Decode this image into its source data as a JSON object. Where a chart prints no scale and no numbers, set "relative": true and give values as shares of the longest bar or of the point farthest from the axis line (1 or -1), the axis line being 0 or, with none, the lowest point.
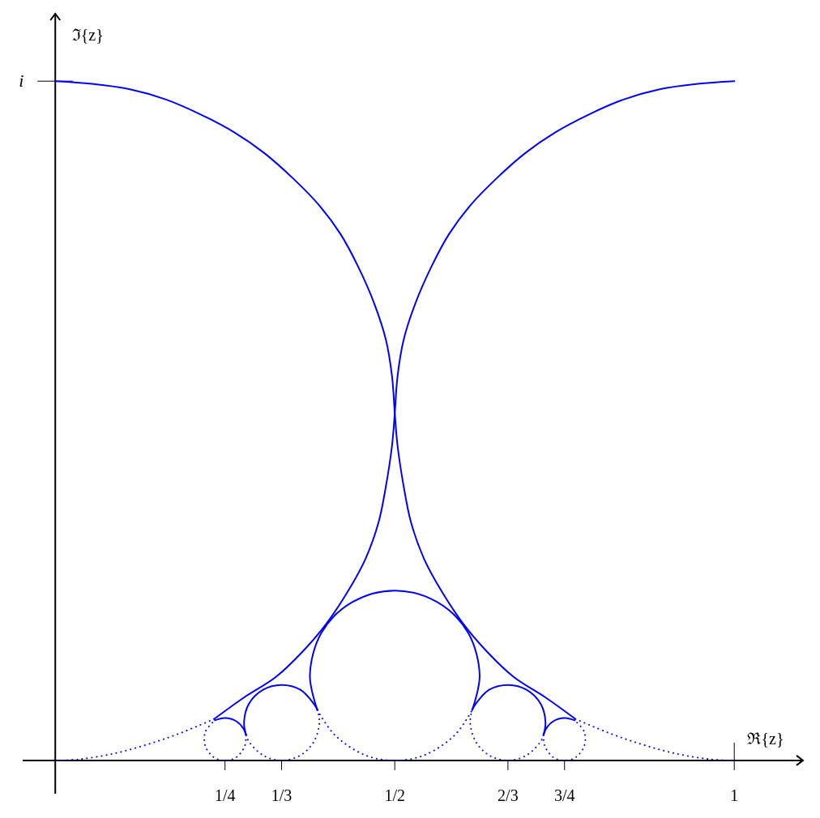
{
  "chart_data": {
    "type": "line",
    "xlabel": "ℜ{z}",
    "ylabel": "ℑ{z}",
    "xlim": [
      -0.048,
      1.1
    ],
    "relative": true,
    "xticks": [
      {
        "value": 0.25,
        "label": "1/4"
      },
      {
        "value": 0.3333,
        "label": "1/3"
      },
      {
        "value": 0.5,
        "label": "1/2"
      },
      {
        "value": 0.6667,
        "label": "2/3"
      },
      {
        "value": 0.75,
        "label": "3/4"
      },
      1
    ],
    "annotations": [
      {
        "text": "i",
        "x": 0,
        "y": 1
      }
    ],
    "grid": false,
    "marker": "none",
    "series": [
      {
        "color": "#0000ff",
        "line_style": "solid",
        "x": [
          0,
          0.054,
          0.11,
          0.163,
          0.214,
          0.263,
          0.308,
          0.35,
          0.388,
          0.42,
          0.446,
          0.47,
          0.487,
          0.496,
          0.5,
          0.504,
          0.513,
          0.524,
          0.543,
          0.569,
          0.601,
          0.636,
          0.675,
          0.723,
          0.766
        ],
        "values": [
          1,
          0.996,
          0.988,
          0.973,
          0.951,
          0.925,
          0.894,
          0.857,
          0.818,
          0.775,
          0.727,
          0.672,
          0.619,
          0.565,
          0.511,
          0.464,
          0.404,
          0.35,
          0.297,
          0.249,
          0.201,
          0.16,
          0.123,
          0.092,
          0.061
        ]
      },
      {
        "color": "#0000ff",
        "line_style": "solid",
        "x": [
          1,
          0.946,
          0.89,
          0.837,
          0.786,
          0.737,
          0.692,
          0.65,
          0.612,
          0.58,
          0.554,
          0.53,
          0.513,
          0.504,
          0.5,
          0.496,
          0.487,
          0.476,
          0.457,
          0.431,
          0.399,
          0.364,
          0.325,
          0.277,
          0.234
        ],
        "values": [
          1,
          0.996,
          0.988,
          0.973,
          0.951,
          0.925,
          0.894,
          0.857,
          0.818,
          0.775,
          0.727,
          0.672,
          0.619,
          0.565,
          0.511,
          0.464,
          0.404,
          0.35,
          0.297,
          0.249,
          0.201,
          0.16,
          0.123,
          0.092,
          0.061
        ]
      },
      {
        "color": "#0000ff",
        "line_style": "dotted",
        "x": [
          0.234,
          0.181,
          0.134,
          0.086,
          0.038,
          0
        ],
        "values": [
          0.061,
          0.039,
          0.023,
          0.01,
          0.002,
          0
        ]
      },
      {
        "color": "#0000ff",
        "line_style": "dotted",
        "x": [
          0.766,
          0.819,
          0.866,
          0.914,
          0.962,
          1
        ],
        "values": [
          0.061,
          0.039,
          0.023,
          0.01,
          0.002,
          0
        ]
      },
      {
        "color": "#0000ff",
        "line_style": "solid",
        "x": [
          0.386,
          0.375,
          0.392,
          0.4375,
          0.5,
          0.5625,
          0.608,
          0.625,
          0.614
        ],
        "values": [
          0.074,
          0.125,
          0.188,
          0.233,
          0.25,
          0.233,
          0.188,
          0.125,
          0.074
        ]
      },
      {
        "color": "#0000ff",
        "line_style": "dotted",
        "x": [
          0.386,
          0.412,
          0.457,
          0.5,
          0.543,
          0.588,
          0.614
        ],
        "values": [
          0.074,
          0.037,
          0.0075,
          0,
          0.0075,
          0.037,
          0.074
        ]
      },
      {
        "color": "#0000ff",
        "line_style": "solid",
        "x": [
          0.281,
          0.278,
          0.285,
          0.306,
          0.333,
          0.361,
          0.381,
          0.386
        ],
        "values": [
          0.0375,
          0.056,
          0.083,
          0.104,
          0.111,
          0.104,
          0.083,
          0.075
        ]
      },
      {
        "color": "#0000ff",
        "line_style": "dotted",
        "x": [
          0.386,
          0.389,
          0.381,
          0.361,
          0.333,
          0.306,
          0.285,
          0.281
        ],
        "values": [
          0.075,
          0.056,
          0.028,
          0.0075,
          0,
          0.0075,
          0.028,
          0.0375
        ]
      },
      {
        "color": "#0000ff",
        "line_style": "solid",
        "x": [
          0.719,
          0.722,
          0.715,
          0.694,
          0.667,
          0.639,
          0.619,
          0.614
        ],
        "values": [
          0.0375,
          0.056,
          0.083,
          0.104,
          0.111,
          0.104,
          0.083,
          0.075
        ]
      },
      {
        "color": "#0000ff",
        "line_style": "dotted",
        "x": [
          0.614,
          0.611,
          0.619,
          0.639,
          0.667,
          0.694,
          0.715,
          0.719
        ],
        "values": [
          0.075,
          0.056,
          0.028,
          0.0075,
          0,
          0.0075,
          0.028,
          0.0375
        ]
      },
      {
        "color": "#0000ff",
        "line_style": "solid",
        "x": [
          0.235,
          0.25,
          0.266,
          0.277,
          0.281
        ],
        "values": [
          0.059,
          0.0625,
          0.058,
          0.047,
          0.0372
        ]
      },
      {
        "color": "#0000ff",
        "line_style": "dotted",
        "x": [
          0.281,
          0.279,
          0.266,
          0.25,
          0.234,
          0.221,
          0.221,
          0.235
        ],
        "values": [
          0.0372,
          0.021,
          0.0042,
          0,
          0.0042,
          0.021,
          0.042,
          0.059
        ]
      },
      {
        "color": "#0000ff",
        "line_style": "solid",
        "x": [
          0.765,
          0.75,
          0.734,
          0.723,
          0.719
        ],
        "values": [
          0.059,
          0.0625,
          0.058,
          0.047,
          0.0372
        ]
      },
      {
        "color": "#0000ff",
        "line_style": "dotted",
        "x": [
          0.719,
          0.721,
          0.734,
          0.75,
          0.766,
          0.779,
          0.779,
          0.765
        ],
        "values": [
          0.0372,
          0.021,
          0.0042,
          0,
          0.0042,
          0.021,
          0.042,
          0.059
        ]
      }
    ]
  }
}
